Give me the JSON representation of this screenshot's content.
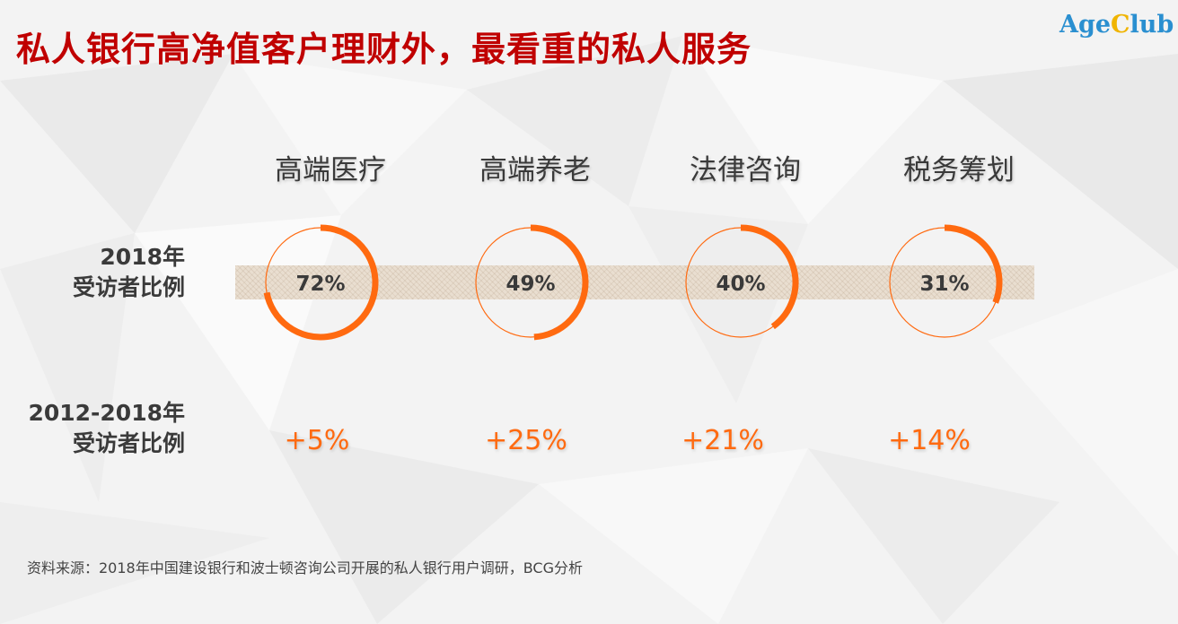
{
  "page": {
    "title": "私人银行高净值客户理财外，最看重的私人服务",
    "logo_part1": "Age",
    "logo_part2": "C",
    "logo_part3": "lub"
  },
  "rows": {
    "row1_line1": "2018年",
    "row1_line2": "受访者比例",
    "row2_line1": "2012-2018年",
    "row2_line2": "受访者比例"
  },
  "source": "资料来源：2018年中国建设银行和波士顿咨询公司开展的私人银行用户调研，BCG分析",
  "colors": {
    "accent": "#ff6a10",
    "title": "#c00000"
  },
  "chart_data": {
    "type": "table",
    "categories": [
      "高端医疗",
      "高端养老",
      "法律咨询",
      "税务筹划"
    ],
    "series": [
      {
        "values": [
          72,
          49,
          40,
          31
        ],
        "labels": [
          "72%",
          "49%",
          "40%",
          "31%"
        ]
      },
      {
        "values": [
          5,
          25,
          21,
          14
        ],
        "labels": [
          "+5%",
          "+25%",
          "+21%",
          "+14%"
        ]
      }
    ]
  }
}
